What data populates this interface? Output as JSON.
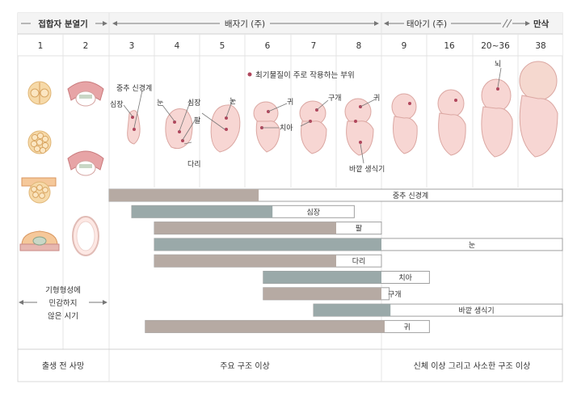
{
  "header": {
    "phase_cleavage": "접합자 분열기",
    "phase_embryo": "배자기 (주)",
    "phase_fetal": "태아기 (주)",
    "phase_term": "만삭"
  },
  "weeks": [
    "1",
    "2",
    "3",
    "4",
    "5",
    "6",
    "7",
    "8",
    "9",
    "16",
    "20~36",
    "38"
  ],
  "legend": {
    "label": "최기물질이 주로 작용하는 부위"
  },
  "annotations": {
    "neural_tube": "중추 신경계",
    "heart_a": "심장",
    "eye_a": "눈",
    "heart_b": "심장",
    "eye_b": "눈",
    "arm": "팔",
    "leg": "다리",
    "ear_a": "귀",
    "teeth": "치아",
    "palate": "구개",
    "ear_b": "귀",
    "genitals": "바깥 생식기",
    "brain": "뇌"
  },
  "left_note": {
    "line1": "기형형성에",
    "line2": "민감하지",
    "line3": "않은 시기"
  },
  "bars": [
    {
      "label": "중추 신경계",
      "start": 3,
      "dark_end": 6.3,
      "end": 38
    },
    {
      "label": "심장",
      "start": 3.5,
      "dark_end": 6.6,
      "end": 8.4
    },
    {
      "label": "팔",
      "start": 4,
      "dark_end": 8,
      "end": 9
    },
    {
      "label": "눈",
      "start": 4,
      "dark_end": 9,
      "end": 38
    },
    {
      "label": "다리",
      "start": 4,
      "dark_end": 8,
      "end": 9
    },
    {
      "label": "치아",
      "start": 6.4,
      "dark_end": 9,
      "end": 16.6
    },
    {
      "label": "구개",
      "start": 6.4,
      "dark_end": 9,
      "end": 10.2
    },
    {
      "label": "바깥 생식기",
      "start": 7.5,
      "dark_end": 10.4,
      "end": 38
    },
    {
      "label": "귀",
      "start": 3.8,
      "dark_end": 9.5,
      "end": 16.6
    }
  ],
  "footer": {
    "left": "출생 전 사망",
    "mid": "주요 구조 이상",
    "right": "신체 이상 그리고 사소한 구조 이상"
  },
  "colors": {
    "major_sensitive": "#b6aaa3",
    "cardiac_bar": "#9aa9a9",
    "less_sensitive": "#ffffff",
    "embryo_skin": "#f7d6d3",
    "target_dot": "#b0465c"
  }
}
